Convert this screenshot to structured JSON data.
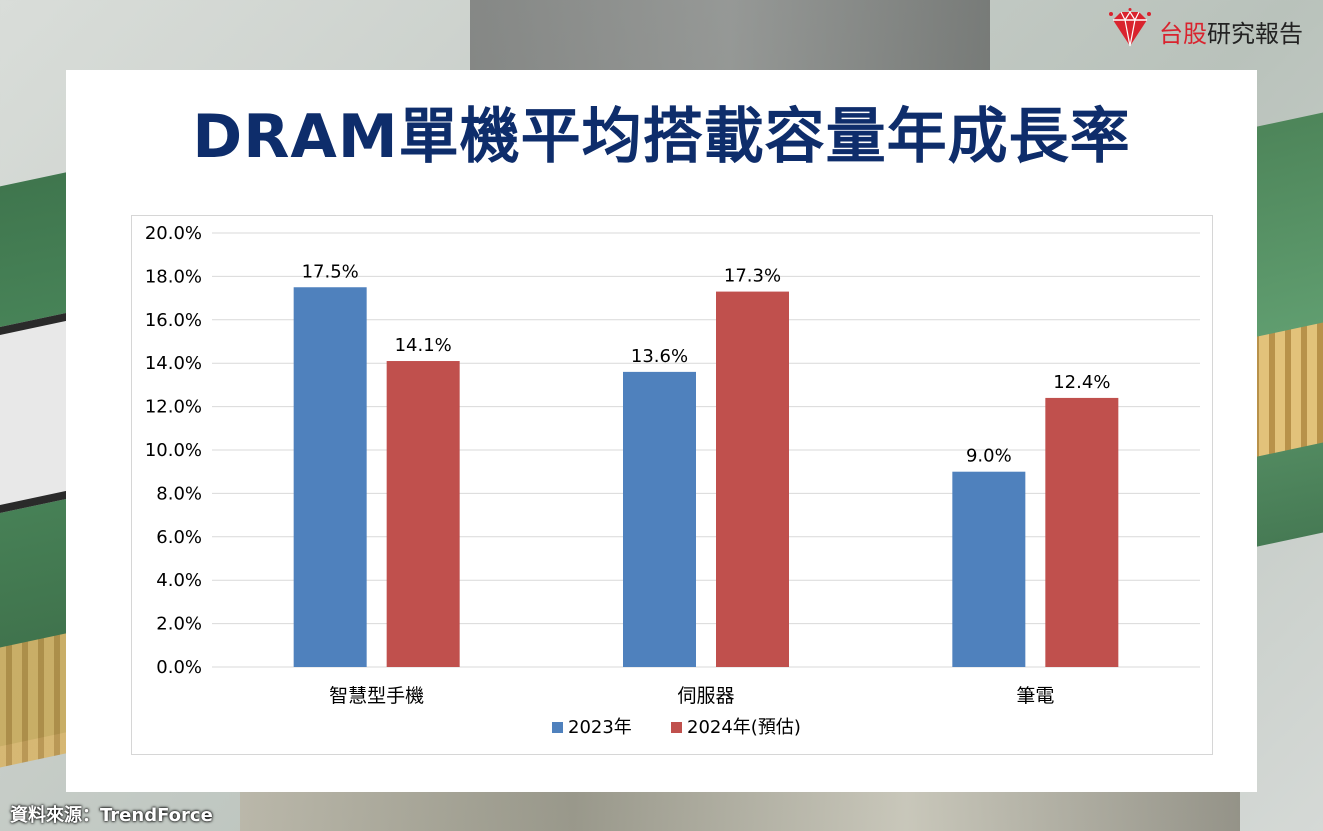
{
  "brand": {
    "name_red": "台股",
    "name_dark": "研究報告",
    "logo_icon": "red-diamond-icon",
    "brand_color": "#d9232e"
  },
  "page": {
    "title": "DRAM單機平均搭載容量年成長率",
    "title_color": "#0e2d6b",
    "source": "資料來源：TrendForce"
  },
  "chart_data": {
    "type": "bar",
    "categories": [
      "智慧型手機",
      "伺服器",
      "筆電"
    ],
    "series": [
      {
        "name": "2023年",
        "values": [
          17.5,
          13.6,
          9.0
        ],
        "labels": [
          "17.5%",
          "13.6%",
          "9.0%"
        ],
        "color": "#4f81bd"
      },
      {
        "name": "2024年(預估)",
        "values": [
          14.1,
          17.3,
          12.4
        ],
        "labels": [
          "14.1%",
          "17.3%",
          "12.4%"
        ],
        "color": "#c0504d"
      }
    ],
    "ylim": [
      0,
      20
    ],
    "yticks": [
      "0.0%",
      "2.0%",
      "4.0%",
      "6.0%",
      "8.0%",
      "10.0%",
      "12.0%",
      "14.0%",
      "16.0%",
      "18.0%",
      "20.0%"
    ],
    "ytick_values": [
      0,
      2,
      4,
      6,
      8,
      10,
      12,
      14,
      16,
      18,
      20
    ],
    "grid": true,
    "legend": "bottom"
  }
}
